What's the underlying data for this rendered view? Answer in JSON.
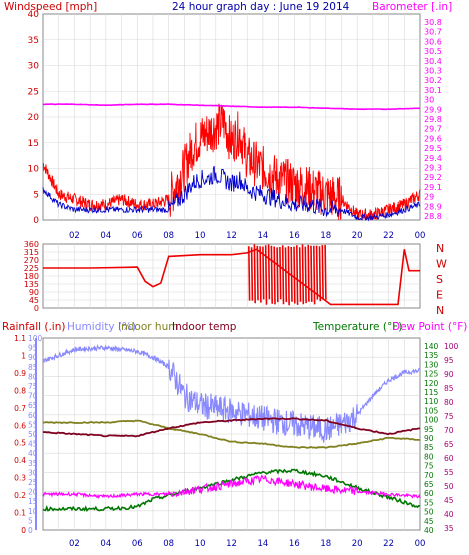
{
  "title": "24 hour graph day : June 19 2014",
  "x_ticks": [
    "02",
    "04",
    "06",
    "08",
    "10",
    "12",
    "14",
    "16",
    "18",
    "20",
    "22",
    "00"
  ],
  "colors": {
    "windspeed": "#cc0000",
    "windspeed_gust": "#ff0000",
    "windspeed_avg": "#0000cc",
    "barometer": "#ff00ff",
    "wind_dir": "#ee0000",
    "humidity": "#8888ff",
    "indoor_hum": "#808020",
    "indoor_temp": "#800020",
    "temperature": "#007700",
    "dew_point": "#ff00ff",
    "rainfall": "#ff0000",
    "title": "#0000aa"
  },
  "chart_data": [
    {
      "type": "line",
      "title": "24 hour graph day : June 19 2014",
      "left_axis_label": "Windspeed [mph]",
      "right_axis_label": "Barometer [.in]",
      "left_ticks": [
        "40",
        "35",
        "30",
        "25",
        "20",
        "15",
        "10",
        "5",
        "0"
      ],
      "right_ticks": [
        "30.8",
        "30.7",
        "30.6",
        "30.5",
        "30.4",
        "30.3",
        "30.2",
        "30.1",
        "30",
        "29.9",
        "29.8",
        "29.7",
        "29.6",
        "29.5",
        "29.4",
        "29.3",
        "29.2",
        "29.1",
        "29",
        "28.9",
        "28.8"
      ],
      "ylim_left": [
        0,
        40
      ],
      "ylim_right": [
        28.75,
        30.85
      ],
      "series": [
        {
          "name": "Windspeed gust",
          "axis": "left",
          "x": [
            0,
            1,
            2,
            3,
            4,
            5,
            6,
            7,
            8,
            9,
            9.5,
            10,
            10.5,
            11,
            11.5,
            12,
            12.5,
            13,
            14,
            15,
            16,
            17,
            18,
            19,
            20,
            21,
            22,
            23,
            24
          ],
          "values": [
            11,
            5,
            4,
            3,
            3,
            4,
            3,
            3,
            4,
            10,
            14,
            16,
            17,
            18,
            19,
            15,
            17,
            12,
            10,
            8,
            7,
            6,
            5,
            4,
            1,
            1,
            2,
            3,
            5
          ]
        },
        {
          "name": "Windspeed average",
          "axis": "left",
          "x": [
            0,
            1,
            2,
            3,
            4,
            5,
            6,
            7,
            8,
            9,
            9.5,
            10,
            10.5,
            11,
            11.5,
            12,
            12.5,
            13,
            14,
            15,
            16,
            17,
            18,
            19,
            20,
            21,
            22,
            23,
            24
          ],
          "values": [
            6,
            3,
            2,
            2,
            2,
            2,
            2,
            2,
            2,
            5,
            7,
            8,
            8,
            9,
            8,
            7,
            8,
            6,
            5,
            4,
            3,
            3,
            2,
            2,
            0.5,
            0.5,
            1,
            2,
            3
          ]
        },
        {
          "name": "Barometer",
          "axis": "right",
          "x": [
            0,
            2,
            4,
            6,
            8,
            10,
            12,
            14,
            16,
            18,
            20,
            22,
            24
          ],
          "values": [
            29.93,
            29.93,
            29.92,
            29.93,
            29.93,
            29.92,
            29.91,
            29.9,
            29.9,
            29.89,
            29.88,
            29.88,
            29.89
          ]
        }
      ]
    },
    {
      "type": "line",
      "left_ticks": [
        "360",
        "315",
        "270",
        "225",
        "180",
        "135",
        "90",
        "45",
        "0"
      ],
      "right_labels": [
        "N",
        "W",
        "S",
        "E",
        "N"
      ],
      "ylim": [
        0,
        360
      ],
      "series": [
        {
          "name": "Wind direction",
          "x": [
            0,
            3,
            6,
            6.5,
            7,
            7.5,
            8,
            10,
            12,
            13,
            13.6,
            18,
            18.3,
            22.6,
            23,
            23.3,
            24
          ],
          "values": [
            225,
            225,
            230,
            150,
            120,
            140,
            290,
            300,
            300,
            310,
            330,
            40,
            20,
            20,
            330,
            210,
            210
          ]
        }
      ]
    },
    {
      "type": "line",
      "labels": [
        "Rainfall (.in)",
        "Humidity (%)",
        "Indoor hum",
        "Indoor temp",
        "Temperature (°F)",
        "Dew Point (°F)"
      ],
      "rain_ticks": [
        "1.1",
        "1",
        "0.9",
        "0.8",
        "0.7",
        "0.6",
        "0.5",
        "0.4",
        "0.3",
        "0.2",
        "0.1",
        "0"
      ],
      "humidity_ticks": [
        "100",
        "95",
        "90",
        "85",
        "80",
        "75",
        "70",
        "65",
        "60",
        "55",
        "50",
        "45",
        "40",
        "35",
        "30",
        "25",
        "20",
        "15",
        "10",
        "5",
        "0"
      ],
      "temp_ticks": [
        "140",
        "135",
        "130",
        "125",
        "120",
        "115",
        "110",
        "105",
        "100",
        "95",
        "90",
        "85",
        "80",
        "75",
        "70",
        "65",
        "60",
        "55",
        "50",
        "45",
        "40"
      ],
      "dew_ticks": [
        "100",
        "95",
        "90",
        "85",
        "80",
        "75",
        "70",
        "65",
        "60",
        "55",
        "50",
        "45",
        "40",
        "35"
      ],
      "ylim_humidity": [
        0,
        100
      ],
      "ylim_temp": [
        40,
        140
      ],
      "series": [
        {
          "name": "Humidity (%)",
          "axis": "humidity",
          "x": [
            0,
            2,
            4,
            6,
            7,
            8,
            8.5,
            9,
            10,
            12,
            14,
            16,
            18,
            19,
            20,
            21,
            22,
            23,
            24
          ],
          "values": [
            88,
            94,
            95,
            93,
            90,
            85,
            78,
            70,
            65,
            62,
            58,
            55,
            52,
            55,
            60,
            70,
            78,
            82,
            83
          ]
        },
        {
          "name": "Indoor hum",
          "axis": "humidity",
          "x": [
            0,
            4,
            6,
            8,
            10,
            12,
            14,
            16,
            18,
            20,
            22,
            24
          ],
          "values": [
            56,
            56,
            57,
            53,
            50,
            46,
            45,
            43,
            43,
            45,
            48,
            47
          ]
        },
        {
          "name": "Indoor temp",
          "axis": "temp",
          "x": [
            0,
            2,
            4,
            6,
            8,
            10,
            12,
            14,
            16,
            18,
            20,
            22,
            24
          ],
          "values": [
            91,
            90,
            89,
            89,
            93,
            96,
            97,
            98,
            98,
            97,
            93,
            90,
            93
          ]
        },
        {
          "name": "Temperature (°F)",
          "axis": "temp",
          "x": [
            0,
            2,
            4,
            6,
            7,
            8,
            10,
            12,
            14,
            16,
            18,
            20,
            22,
            24
          ],
          "values": [
            51,
            51,
            51,
            52,
            56,
            58,
            62,
            66,
            70,
            71,
            68,
            62,
            57,
            52
          ]
        },
        {
          "name": "Dew Point (°F)",
          "axis": "dew",
          "x": [
            0,
            2,
            4,
            6,
            8,
            10,
            12,
            14,
            16,
            18,
            20,
            22,
            24
          ],
          "values": [
            44,
            44,
            43,
            44,
            44,
            46,
            48,
            50,
            48,
            46,
            45,
            44,
            43
          ]
        }
      ]
    }
  ]
}
